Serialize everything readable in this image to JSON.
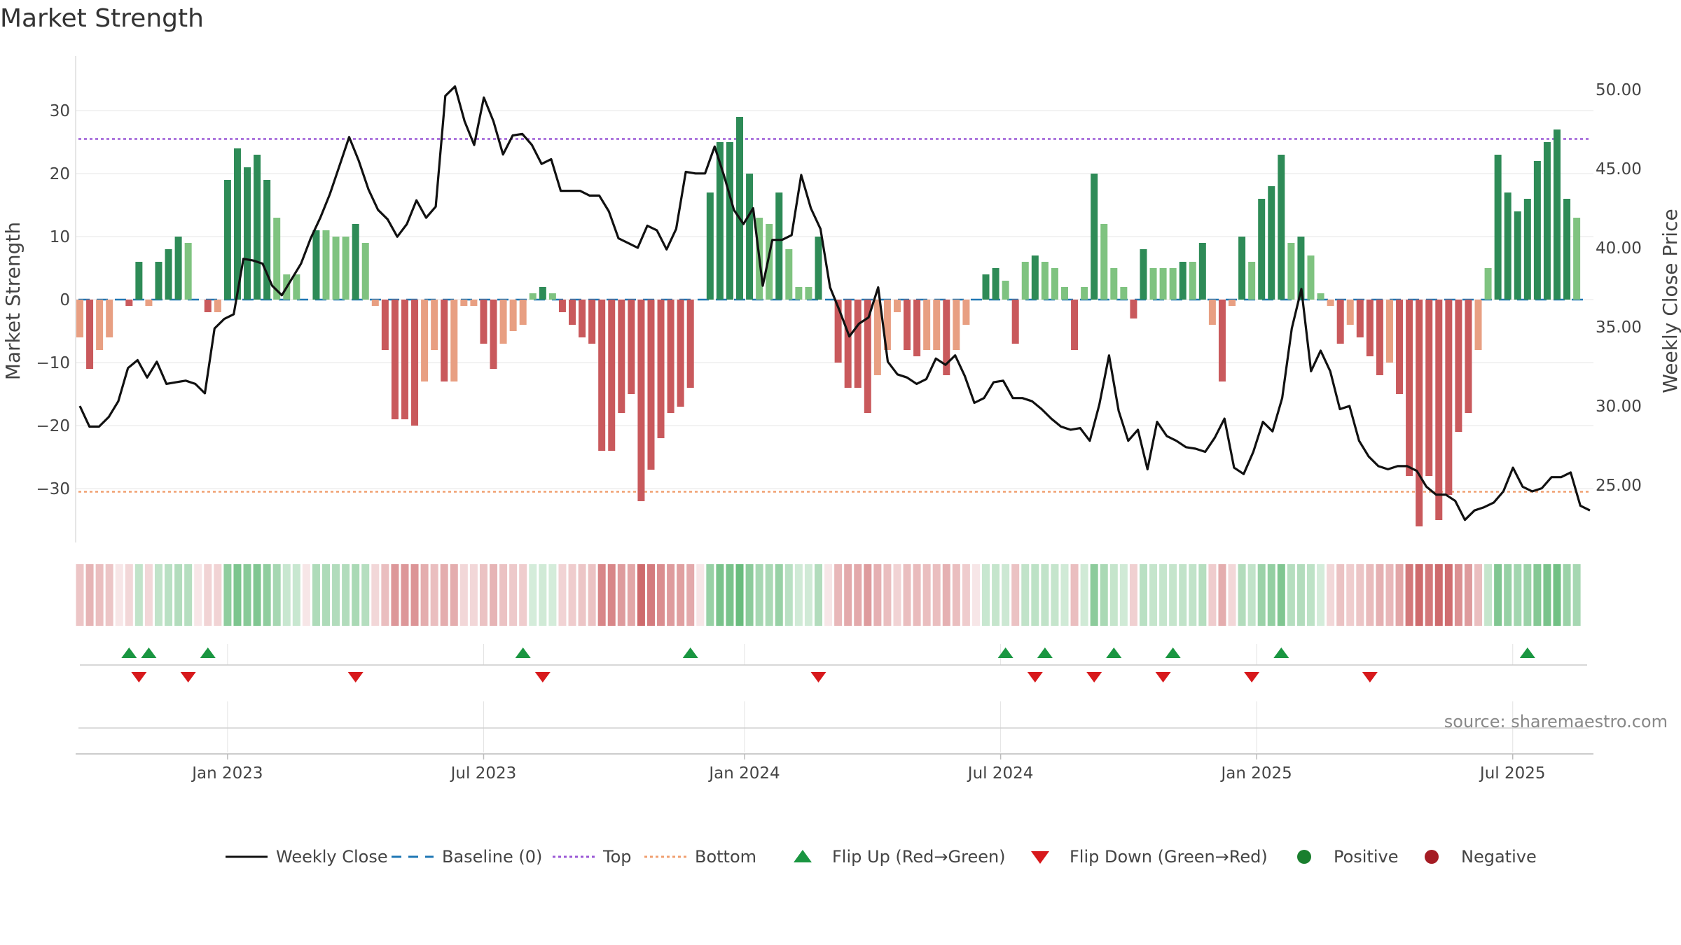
{
  "chart_data": {
    "type": "bar+line",
    "title": "Market Strength",
    "ylabel_left": "Market Strength",
    "ylabel_right": "Weekly Close Price",
    "ylim_left": [
      -38.5,
      38.5
    ],
    "ylim_right": [
      21.6,
      51.5
    ],
    "yticks_left": [
      30,
      20,
      10,
      0,
      -10,
      -20,
      -30
    ],
    "yticks_left_labels": [
      "30",
      "20",
      "10",
      "0",
      "−10",
      "−20",
      "−30"
    ],
    "yticks_right": [
      50,
      45,
      40,
      35,
      30,
      25
    ],
    "yticks_right_labels": [
      "50.00",
      "45.00",
      "40.00",
      "35.00",
      "30.00",
      "25.00"
    ],
    "x_ticks": [
      {
        "label": "Jan 2023",
        "week": 15
      },
      {
        "label": "Jul 2023",
        "week": 41
      },
      {
        "label": "Jan 2024",
        "week": 67.5
      },
      {
        "label": "Jul 2024",
        "week": 93.5
      },
      {
        "label": "Jan 2025",
        "week": 119.5
      },
      {
        "label": "Jul 2025",
        "week": 145.5
      }
    ],
    "top_threshold": 25.5,
    "bottom_threshold": -30.5,
    "strength": [
      -6,
      -11,
      -8,
      -6,
      0,
      -1,
      6,
      -1,
      6,
      8,
      10,
      9,
      0,
      -2,
      -2,
      19,
      24,
      21,
      23,
      19,
      13,
      4,
      4,
      0,
      11,
      11,
      10,
      10,
      12,
      9,
      -1,
      -8,
      -19,
      -19,
      -20,
      -13,
      -8,
      -13,
      -13,
      -1,
      -1,
      -7,
      -11,
      -7,
      -5,
      -4,
      1,
      2,
      1,
      -2,
      -4,
      -6,
      -7,
      -24,
      -24,
      -18,
      -15,
      -32,
      -27,
      -22,
      -18,
      -17,
      -14,
      0,
      17,
      25,
      25,
      29,
      20,
      13,
      12,
      17,
      8,
      2,
      2,
      10,
      0,
      -10,
      -14,
      -14,
      -18,
      -12,
      -8,
      -2,
      -8,
      -9,
      -8,
      -8,
      -12,
      -8,
      -4,
      0,
      4,
      5,
      3,
      -7,
      6,
      7,
      6,
      5,
      2,
      -8,
      2,
      20,
      12,
      5,
      2,
      -3,
      8,
      5,
      5,
      5,
      6,
      6,
      9,
      -4,
      -13,
      -1,
      10,
      6,
      16,
      18,
      23,
      9,
      10,
      7,
      1,
      -1,
      -7,
      -4,
      -6,
      -9,
      -12,
      -10,
      -15,
      -28,
      -36,
      -28,
      -35,
      -31,
      -21,
      -18,
      -8,
      5,
      23,
      17,
      14,
      16,
      22,
      25,
      27,
      16,
      13
    ],
    "close": [
      30.0,
      28.7,
      28.7,
      29.3,
      30.3,
      32.4,
      32.9,
      31.8,
      32.8,
      31.4,
      31.5,
      31.6,
      31.4,
      30.8,
      34.9,
      35.5,
      35.8,
      39.3,
      39.2,
      39.0,
      37.6,
      37.0,
      38.0,
      39.0,
      40.6,
      41.9,
      43.4,
      45.2,
      47.0,
      45.5,
      43.7,
      42.4,
      41.8,
      40.7,
      41.5,
      43.0,
      41.9,
      42.6,
      49.6,
      50.2,
      48.0,
      46.5,
      49.5,
      48.0,
      45.9,
      47.1,
      47.2,
      46.5,
      45.3,
      45.6,
      43.6,
      43.6,
      43.6,
      43.3,
      43.3,
      42.3,
      40.6,
      40.3,
      40.0,
      41.4,
      41.1,
      39.9,
      41.2,
      44.8,
      44.7,
      44.7,
      46.4,
      44.5,
      42.4,
      41.5,
      42.5,
      37.6,
      40.5,
      40.5,
      40.8,
      44.6,
      42.5,
      41.2,
      37.5,
      36.0,
      34.4,
      35.2,
      35.6,
      37.5,
      32.8,
      32.0,
      31.8,
      31.4,
      31.7,
      33.0,
      32.6,
      33.2,
      31.9,
      30.2,
      30.5,
      31.5,
      31.6,
      30.5,
      30.5,
      30.3,
      29.8,
      29.2,
      28.7,
      28.5,
      28.6,
      27.8,
      30.1,
      33.2,
      29.7,
      27.8,
      28.5,
      26.0,
      29.0,
      28.1,
      27.8,
      27.4,
      27.3,
      27.1,
      28.0,
      29.2,
      26.1,
      25.7,
      27.1,
      29.0,
      28.4,
      30.5,
      34.9,
      37.4,
      32.2,
      33.5,
      32.2,
      29.8,
      30.0,
      27.8,
      26.8,
      26.2,
      26.0,
      26.2,
      26.2,
      25.9,
      24.9,
      24.4,
      24.4,
      24.0,
      22.8,
      23.4,
      23.6,
      23.9,
      24.6,
      26.1,
      24.9,
      24.6,
      24.8,
      25.5,
      25.5,
      25.8,
      23.7,
      23.4
    ],
    "flip_up_weeks": [
      5,
      7,
      13,
      45,
      62,
      94,
      98,
      105,
      111,
      122,
      147
    ],
    "flip_down_weeks": [
      6,
      11,
      28,
      47,
      75,
      97,
      103,
      110,
      119,
      131
    ],
    "series": [
      {
        "name": "Weekly Close",
        "color": "#111111"
      },
      {
        "name": "Baseline (0)",
        "color": "#1f77b4"
      },
      {
        "name": "Top",
        "color": "#9b59d6"
      },
      {
        "name": "Bottom",
        "color": "#f0a070"
      }
    ]
  },
  "legend": [
    {
      "label": "Weekly Close",
      "kind": "line",
      "color": "#111111"
    },
    {
      "label": "Baseline (0)",
      "kind": "dash",
      "color": "#1f77b4"
    },
    {
      "label": "Top",
      "kind": "dot",
      "color": "#9b59d6"
    },
    {
      "label": "Bottom",
      "kind": "dot",
      "color": "#f0a070"
    },
    {
      "label": "Flip Up (Red→Green)",
      "kind": "tri-up",
      "color": "#1a9641"
    },
    {
      "label": "Flip Down (Green→Red)",
      "kind": "tri-down",
      "color": "#d7191c"
    },
    {
      "label": "Positive",
      "kind": "circle",
      "color": "#1a7f2e"
    },
    {
      "label": "Negative",
      "kind": "circle",
      "color": "#a51c24"
    }
  ],
  "colors": {
    "pos_strong": "#2e8b57",
    "pos_weak": "#7fc380",
    "neg_strong": "#c9595c",
    "neg_weak": "#e89f82",
    "flip_up": "#1a9641",
    "flip_down": "#d7191c"
  },
  "source": "source: sharemaestro.com"
}
